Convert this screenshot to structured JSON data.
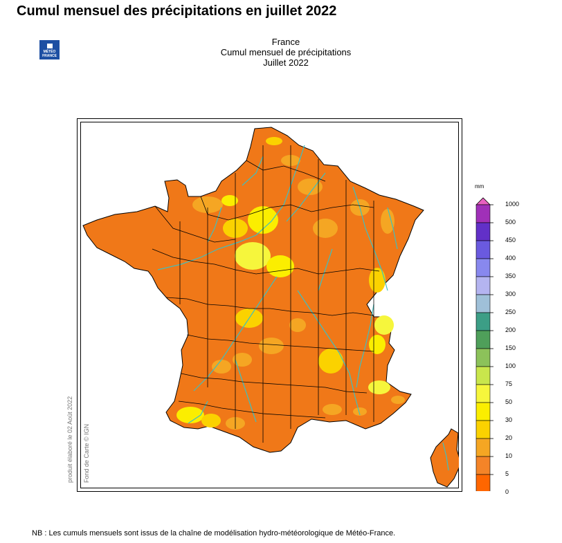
{
  "page": {
    "title": "Cumul mensuel des précipitations en juillet 2022",
    "footnote": "NB : Les cumuls mensuels sont issus de la chaîne de modélisation hydro-météorologique de Météo-France."
  },
  "logo": {
    "line1": "MÉTÉO",
    "line2": "FRANCE",
    "color": "#1d4fa3"
  },
  "map": {
    "header": [
      "France",
      "Cumul mensuel de précipitations",
      "Juillet 2022"
    ],
    "credit_product": "produit élaboré le 02 Août 2022",
    "credit_base": "Fond de Carte © IGN",
    "dominant_color": "#f07818",
    "river_color": "#3fbfbf",
    "region_border_color": "#000000"
  },
  "legend": {
    "unit": "mm",
    "classes": [
      {
        "min": "0",
        "max": "5",
        "color": "#ff6600"
      },
      {
        "min": "5",
        "max": "10",
        "color": "#f48428"
      },
      {
        "min": "10",
        "max": "20",
        "color": "#f5a623"
      },
      {
        "min": "20",
        "max": "30",
        "color": "#fbd200"
      },
      {
        "min": "30",
        "max": "50",
        "color": "#fbee00"
      },
      {
        "min": "50",
        "max": "75",
        "color": "#f6f63c"
      },
      {
        "min": "75",
        "max": "100",
        "color": "#c9e64c"
      },
      {
        "min": "100",
        "max": "150",
        "color": "#8cc25a"
      },
      {
        "min": "150",
        "max": "200",
        "color": "#4f9f5a"
      },
      {
        "min": "200",
        "max": "250",
        "color": "#3c9e86"
      },
      {
        "min": "250",
        "max": "300",
        "color": "#9fc0d8"
      },
      {
        "min": "300",
        "max": "350",
        "color": "#b4b4f0"
      },
      {
        "min": "350",
        "max": "400",
        "color": "#8888ee"
      },
      {
        "min": "400",
        "max": "450",
        "color": "#6a5adf"
      },
      {
        "min": "450",
        "max": "500",
        "color": "#6230c8"
      },
      {
        "min": "500",
        "max": "1000",
        "color": "#a030b8"
      }
    ],
    "cap_color": "#e860c0",
    "labels": [
      "0",
      "5",
      "10",
      "20",
      "30",
      "50",
      "75",
      "100",
      "150",
      "200",
      "250",
      "300",
      "350",
      "400",
      "450",
      "500",
      "1000"
    ]
  }
}
